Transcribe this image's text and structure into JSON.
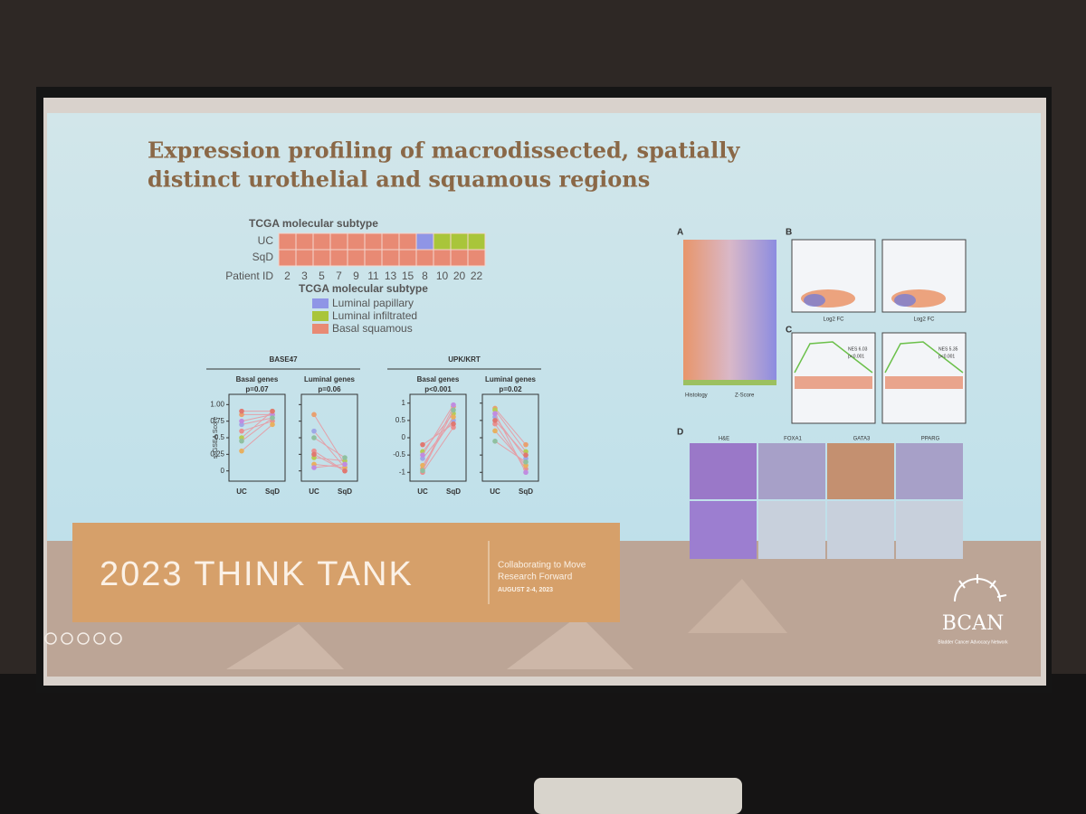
{
  "slide": {
    "title_lines": [
      "Expression profiling of macrodissected, spatially",
      "distinct urothelial and squamous regions"
    ],
    "heatmap": {
      "header": "TCGA molecular subtype",
      "row_labels": [
        "UC",
        "SqD"
      ],
      "cells": [
        [
          2,
          2,
          2,
          2,
          2,
          2,
          2,
          2,
          0,
          1,
          1,
          1
        ],
        [
          2,
          2,
          2,
          2,
          2,
          2,
          2,
          2,
          2,
          2,
          2,
          2
        ]
      ],
      "id_label": "Patient ID",
      "patient_ids": [
        2,
        3,
        5,
        7,
        9,
        11,
        13,
        15,
        8,
        10,
        20,
        22
      ],
      "legend_title": "TCGA molecular subtype",
      "legend": [
        {
          "name": "Luminal papillary",
          "color": "#8f95e6"
        },
        {
          "name": "Luminal infiltrated",
          "color": "#a9c53a"
        },
        {
          "name": "Basal squamous",
          "color": "#e88a74"
        }
      ]
    },
    "groups": [
      {
        "title": "BASE47",
        "y_label": "ssGSEA Score",
        "ylim": [
          -0.1,
          1.1
        ],
        "yticks": [
          0,
          0.25,
          0.5,
          0.75,
          {
            "value": 1,
            "label": "1.00"
          }
        ],
        "panels": [
          {
            "title": "Basal genes",
            "p": "p=0.07",
            "x_labels": [
              "UC",
              "SqD"
            ],
            "uc": [
              0.85,
              0.7,
              0.6,
              0.5,
              0.3,
              0.75,
              0.9,
              0.45
            ],
            "sqd": [
              0.85,
              0.8,
              0.75,
              0.9,
              0.7,
              0.85,
              0.9,
              0.8
            ]
          },
          {
            "title": "Luminal genes",
            "p": "p=0.06",
            "x_labels": [
              "UC",
              "SqD"
            ],
            "uc": [
              0.85,
              0.6,
              0.3,
              0.2,
              0.1,
              0.05,
              0.25,
              0.5
            ],
            "sqd": [
              0.1,
              0.05,
              0,
              0.15,
              0.05,
              0.1,
              0,
              0.2
            ]
          }
        ]
      },
      {
        "title": "UPK/KRT",
        "ylim": [
          -1.15,
          1.15
        ],
        "yticks": [
          -1,
          -0.5,
          0,
          0.5,
          1
        ],
        "panels": [
          {
            "title": "Basal genes",
            "p": "p<0.001",
            "x_labels": [
              "UC",
              "SqD"
            ],
            "uc": [
              -0.9,
              -0.6,
              -1,
              -0.4,
              -0.8,
              -0.5,
              -0.2,
              -0.95
            ],
            "sqd": [
              0.9,
              0.5,
              0.3,
              0.7,
              0.6,
              0.95,
              0.4,
              0.8
            ]
          },
          {
            "title": "Luminal genes",
            "p": "p=0.02",
            "x_labels": [
              "UC",
              "SqD"
            ],
            "uc": [
              0.85,
              0.6,
              0.4,
              0.8,
              0.2,
              0.7,
              0.5,
              -0.1
            ],
            "sqd": [
              -0.2,
              -0.6,
              -0.9,
              -0.4,
              -0.8,
              -1,
              -0.5,
              -0.7
            ]
          }
        ]
      }
    ],
    "figure_panels": {
      "letters": [
        "A",
        "B",
        "C",
        "D"
      ],
      "heatmap_legend": [
        "Histology",
        "Z-Score"
      ],
      "axis_labels": [
        "Log2 FC",
        "Log2 FC"
      ],
      "gsea_stats": [
        [
          "NES 6.03",
          "p<0.001"
        ],
        [
          "NES 5.35",
          "p<0.001"
        ]
      ],
      "stains": [
        "H&E",
        "FOXA1",
        "GATA3",
        "PPARG"
      ]
    },
    "footer": {
      "event": "2023 THINK TANK",
      "tagline": [
        "Collaborating to Move",
        "Research Forward"
      ],
      "date": "AUGUST 2-4, 2023",
      "logo": "BCAN",
      "logo_sub": "Bladder Cancer Advocacy Network"
    }
  }
}
